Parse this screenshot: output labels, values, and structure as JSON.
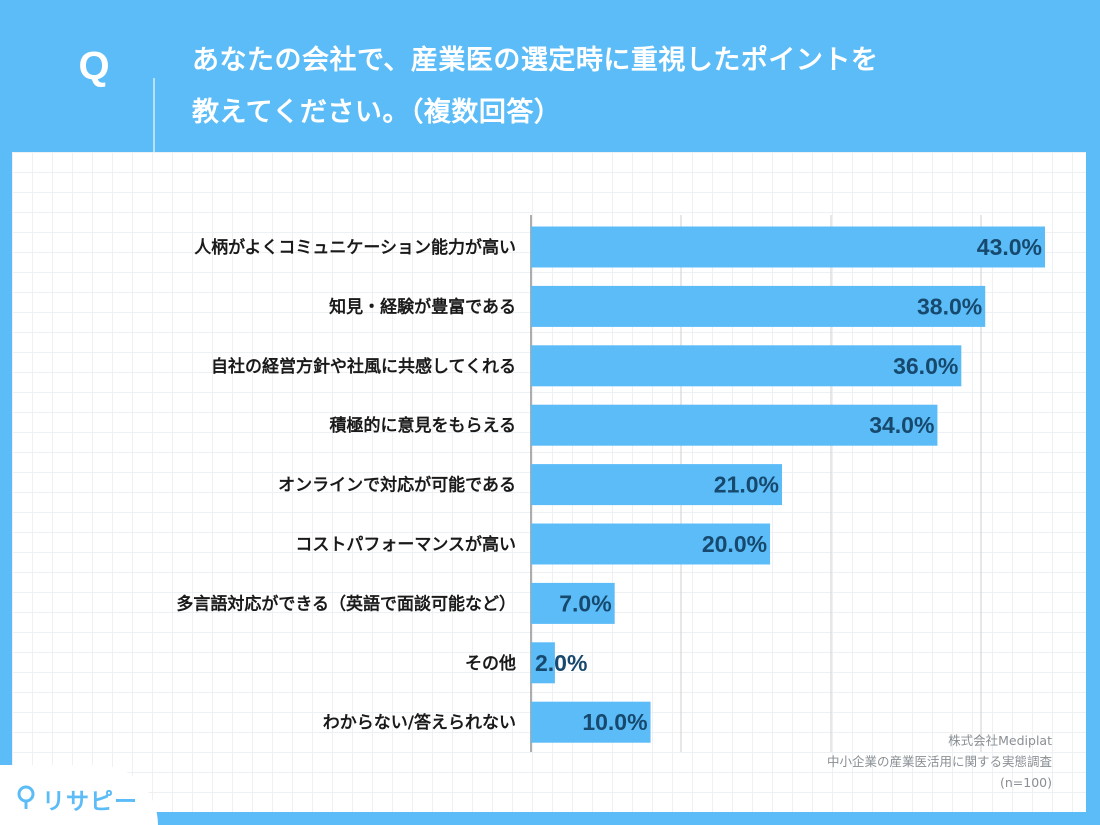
{
  "header": {
    "q_label": "Q",
    "question_line1": "あなたの会社で、産業医の選定時に重視したポイントを",
    "question_line2": "教えてください。（複数回答）"
  },
  "source": {
    "company": "株式会社Mediplat",
    "survey": "中小企業の産業医活用に関する実態調査",
    "sample": "(n=100)"
  },
  "logo": {
    "text": "リサピー"
  },
  "colors": {
    "background": "#5bbcf7",
    "bar": "#5bbcf7",
    "value_text": "#17496e"
  },
  "chart_data": {
    "type": "bar",
    "orientation": "horizontal",
    "categories": [
      "人柄がよくコミュニケーション能力が高い",
      "知見・経験が豊富である",
      "自社の経営方針や社風に共感してくれる",
      "積極的に意見をもらえる",
      "オンラインで対応が可能である",
      "コストパフォーマンスが高い",
      "多言語対応ができる（英語で面談可能など）",
      "その他",
      "わからない/答えられない"
    ],
    "values": [
      43.0,
      38.0,
      36.0,
      34.0,
      21.0,
      20.0,
      7.0,
      2.0,
      10.0
    ],
    "value_labels": [
      "43.0%",
      "38.0%",
      "36.0%",
      "34.0%",
      "21.0%",
      "20.0%",
      "7.0%",
      "2.0%",
      "10.0%"
    ],
    "xlim": [
      0,
      43
    ],
    "grid": true
  }
}
